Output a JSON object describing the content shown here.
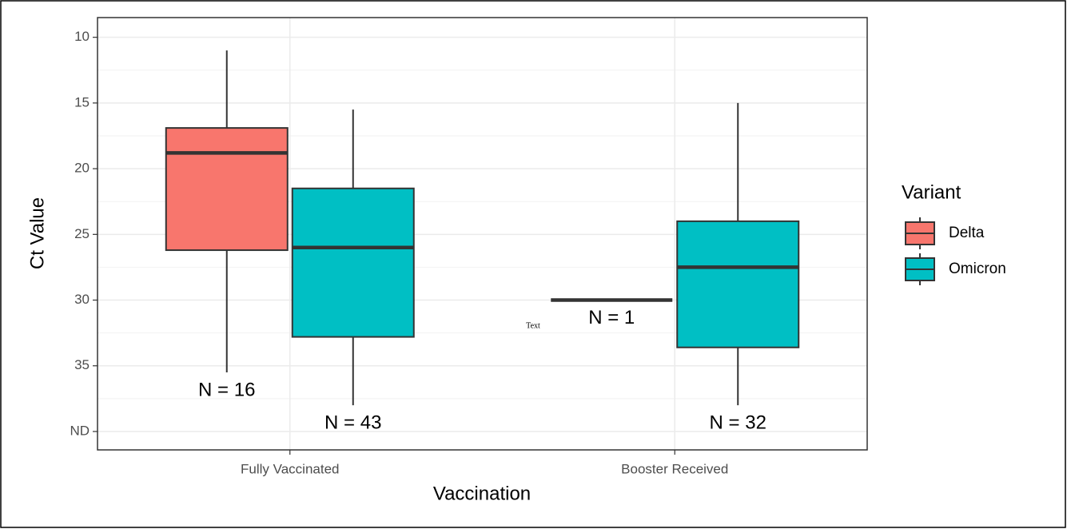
{
  "chart_data": {
    "type": "box",
    "x_label": "Vaccination",
    "y_label": "Ct Value",
    "y_reversed": true,
    "ylim": [
      8.5,
      41.4
    ],
    "yticks": [
      10,
      15,
      20,
      25,
      30,
      35,
      {
        "value": 40,
        "label": "ND"
      }
    ],
    "grid": true,
    "categories": [
      "Fully Vaccinated",
      "Booster Received"
    ],
    "legend_title": "Variant",
    "legend_position": "right",
    "annotation": "Text",
    "series": [
      {
        "name": "Delta",
        "color": "#F8766D",
        "boxes": [
          {
            "min": 11.0,
            "q1": 16.9,
            "median": 18.8,
            "q3": 26.2,
            "max": 35.5
          },
          {
            "min": 30.0,
            "q1": 30.0,
            "median": 30.0,
            "q3": 30.0,
            "max": 30.0
          }
        ],
        "n_labels": [
          "N = 16",
          "N = 1"
        ]
      },
      {
        "name": "Omicron",
        "color": "#00BFC4",
        "boxes": [
          {
            "min": 15.5,
            "q1": 21.5,
            "median": 26.0,
            "q3": 32.8,
            "max": 38.0
          },
          {
            "min": 15.0,
            "q1": 24.0,
            "median": 27.5,
            "q3": 33.6,
            "max": 38.0
          }
        ],
        "n_labels": [
          "N = 43",
          "N = 32"
        ]
      }
    ]
  }
}
